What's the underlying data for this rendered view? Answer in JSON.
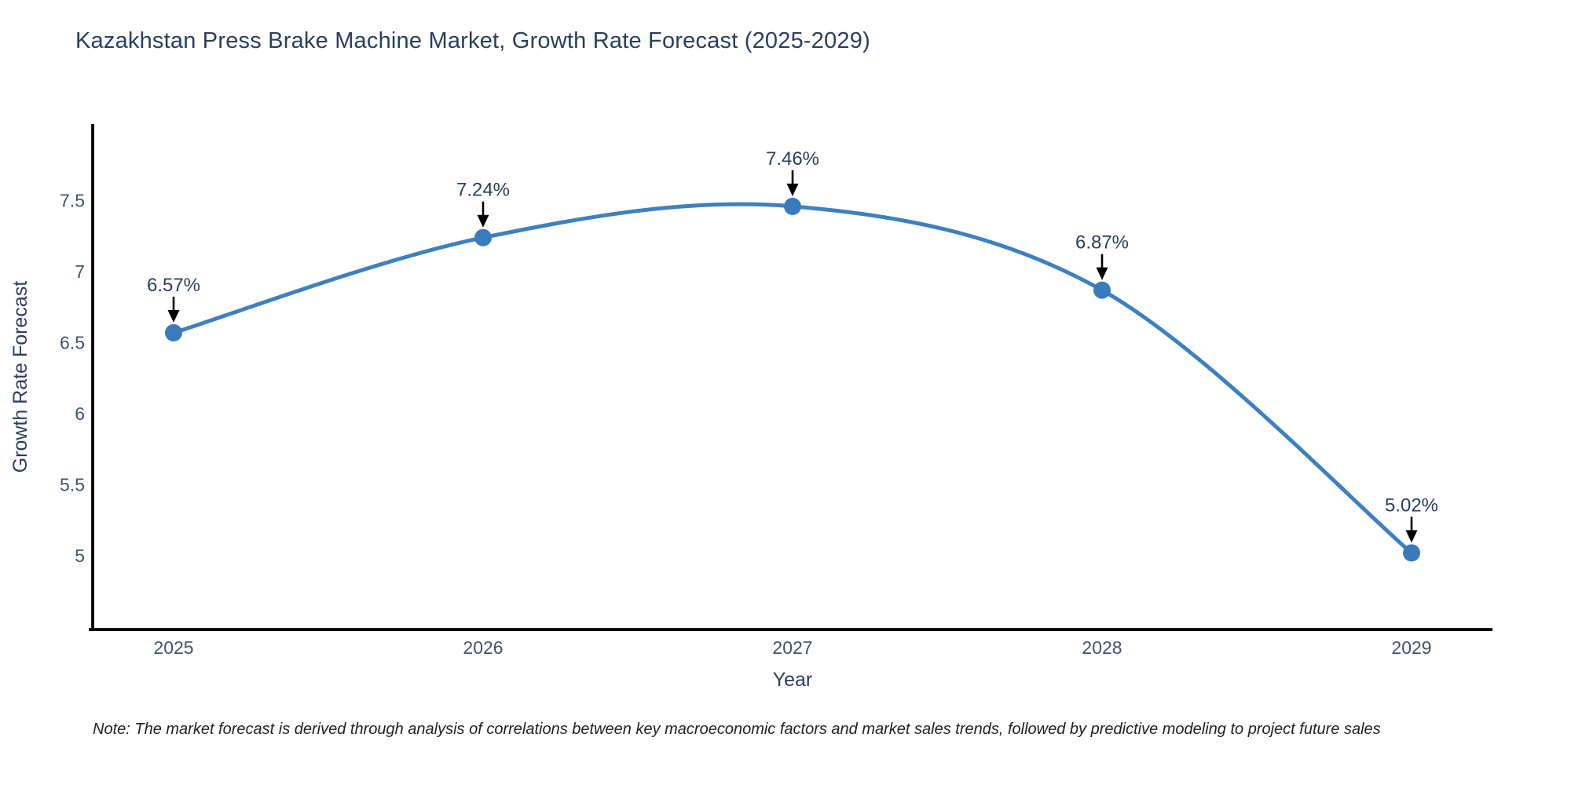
{
  "chart_data": {
    "type": "line",
    "title": "Kazakhstan Press Brake Machine Market, Growth Rate Forecast (2025-2029)",
    "xlabel": "Year",
    "ylabel": "Growth Rate Forecast",
    "x": [
      2025,
      2026,
      2027,
      2028,
      2029
    ],
    "values": [
      6.57,
      7.24,
      7.46,
      6.87,
      5.02
    ],
    "point_labels": [
      "6.57%",
      "7.24%",
      "7.46%",
      "6.87%",
      "5.02%"
    ],
    "yticks": [
      5,
      5.5,
      6,
      6.5,
      7,
      7.5
    ],
    "ylim": [
      4.48,
      8.04
    ],
    "grid": false,
    "legend": null,
    "line_shape": "spline",
    "marker_style": "circle",
    "annotation_arrows": true,
    "note": "Note: The market forecast is derived through analysis of correlations between key macroeconomic factors and market sales trends, followed by predictive modeling to project future sales",
    "colors": {
      "line": "#3e80c0",
      "marker": "#3a7bbd",
      "axis": "#000000",
      "title_text": "#2a3f5f",
      "tick_text": "#42526e",
      "axis_title_text": "#2a3f5f",
      "annotation_text": "#2a3f5f",
      "arrow": "#000000",
      "note_text": "#222222",
      "background": "#ffffff"
    }
  }
}
